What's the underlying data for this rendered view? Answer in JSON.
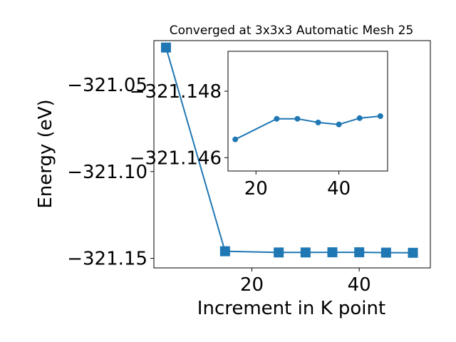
{
  "chart_data": [
    {
      "type": "line",
      "role": "main",
      "title": "Converged at 3x3x3 Automatic Mesh 25",
      "xlabel": "Increment in K point",
      "ylabel": "Energy (eV)",
      "xlim": [
        1.75,
        53.25
      ],
      "ylim": [
        -321.1555,
        -321.0245
      ],
      "xticks": [
        20,
        40
      ],
      "xtick_labels": [
        "20",
        "40"
      ],
      "yticks": [
        -321.05,
        -321.1,
        -321.15
      ],
      "ytick_labels": [
        "−321.05",
        "−321.10",
        "−321.15"
      ],
      "marker": "square",
      "color": "#1f77b4",
      "series": [
        {
          "x": [
            4,
            15,
            25,
            30,
            35,
            40,
            45,
            50
          ],
          "y": [
            -321.0285,
            -321.1459,
            -321.1466,
            -321.1466,
            -321.1465,
            -321.1465,
            -321.1467,
            -321.1468
          ]
        }
      ]
    },
    {
      "type": "line",
      "role": "inset",
      "xlim": [
        13.25,
        51.75
      ],
      "ylim": [
        -321.1456,
        -321.1492
      ],
      "xticks": [
        20,
        40
      ],
      "xtick_labels": [
        "20",
        "40"
      ],
      "yticks": [
        -321.146,
        -321.148
      ],
      "ytick_labels": [
        "−321.146",
        "−321.148"
      ],
      "marker": "circle",
      "color": "#1f77b4",
      "series": [
        {
          "x": [
            15,
            25,
            30,
            35,
            40,
            45,
            50
          ],
          "y": [
            -321.14655,
            -321.14717,
            -321.14717,
            -321.14706,
            -321.147,
            -321.14719,
            -321.14725
          ]
        }
      ]
    }
  ]
}
